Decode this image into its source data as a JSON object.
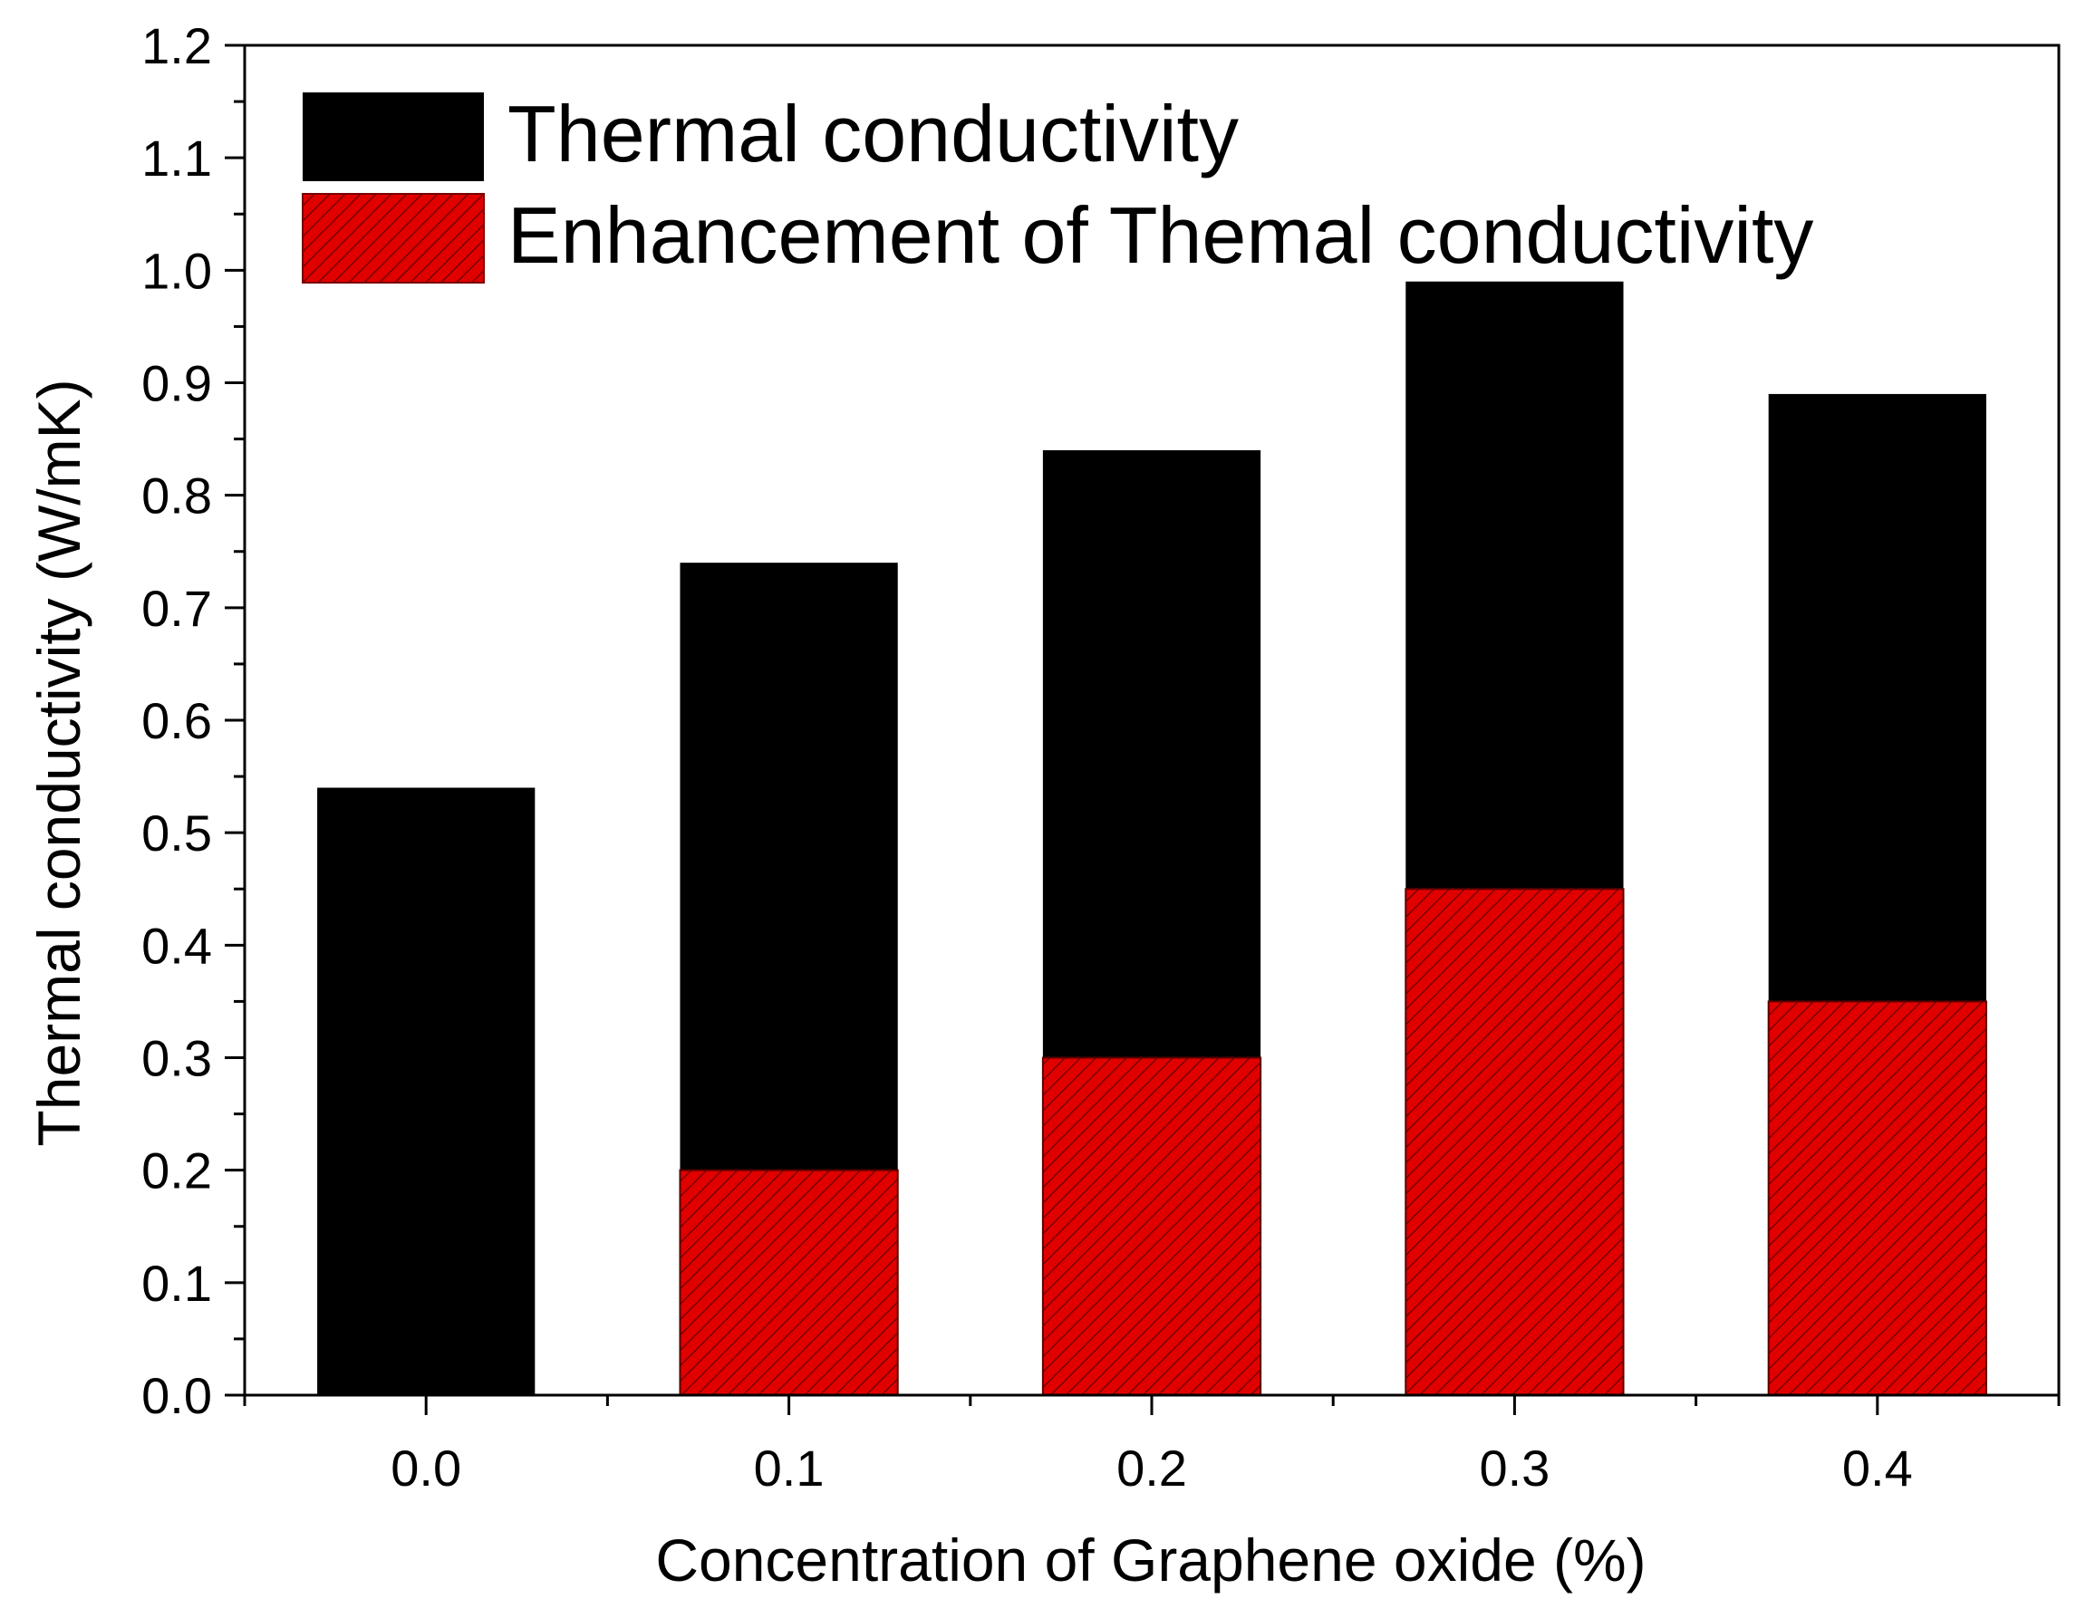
{
  "chart_data": {
    "type": "bar",
    "title": "",
    "xlabel": "Concentration of Graphene oxide (%)",
    "ylabel": "Thermal conductivity (W/mK)",
    "categories": [
      "0.0",
      "0.1",
      "0.2",
      "0.3",
      "0.4"
    ],
    "ylim": [
      0,
      1.2
    ],
    "yticks": [
      "0.0",
      "0.1",
      "0.2",
      "0.3",
      "0.4",
      "0.5",
      "0.6",
      "0.7",
      "0.8",
      "0.9",
      "1.0",
      "1.1",
      "1.2"
    ],
    "grid": false,
    "legend_position": "top-left",
    "series": [
      {
        "name": "Thermal conductivity",
        "color": "#000000",
        "pattern": "solid",
        "values": [
          0.54,
          0.74,
          0.84,
          0.99,
          0.89
        ]
      },
      {
        "name": "Enhancement of Themal conductivity",
        "color": "#e00000",
        "pattern": "hatched",
        "values": [
          0.0,
          0.2,
          0.3,
          0.45,
          0.35
        ]
      }
    ]
  }
}
